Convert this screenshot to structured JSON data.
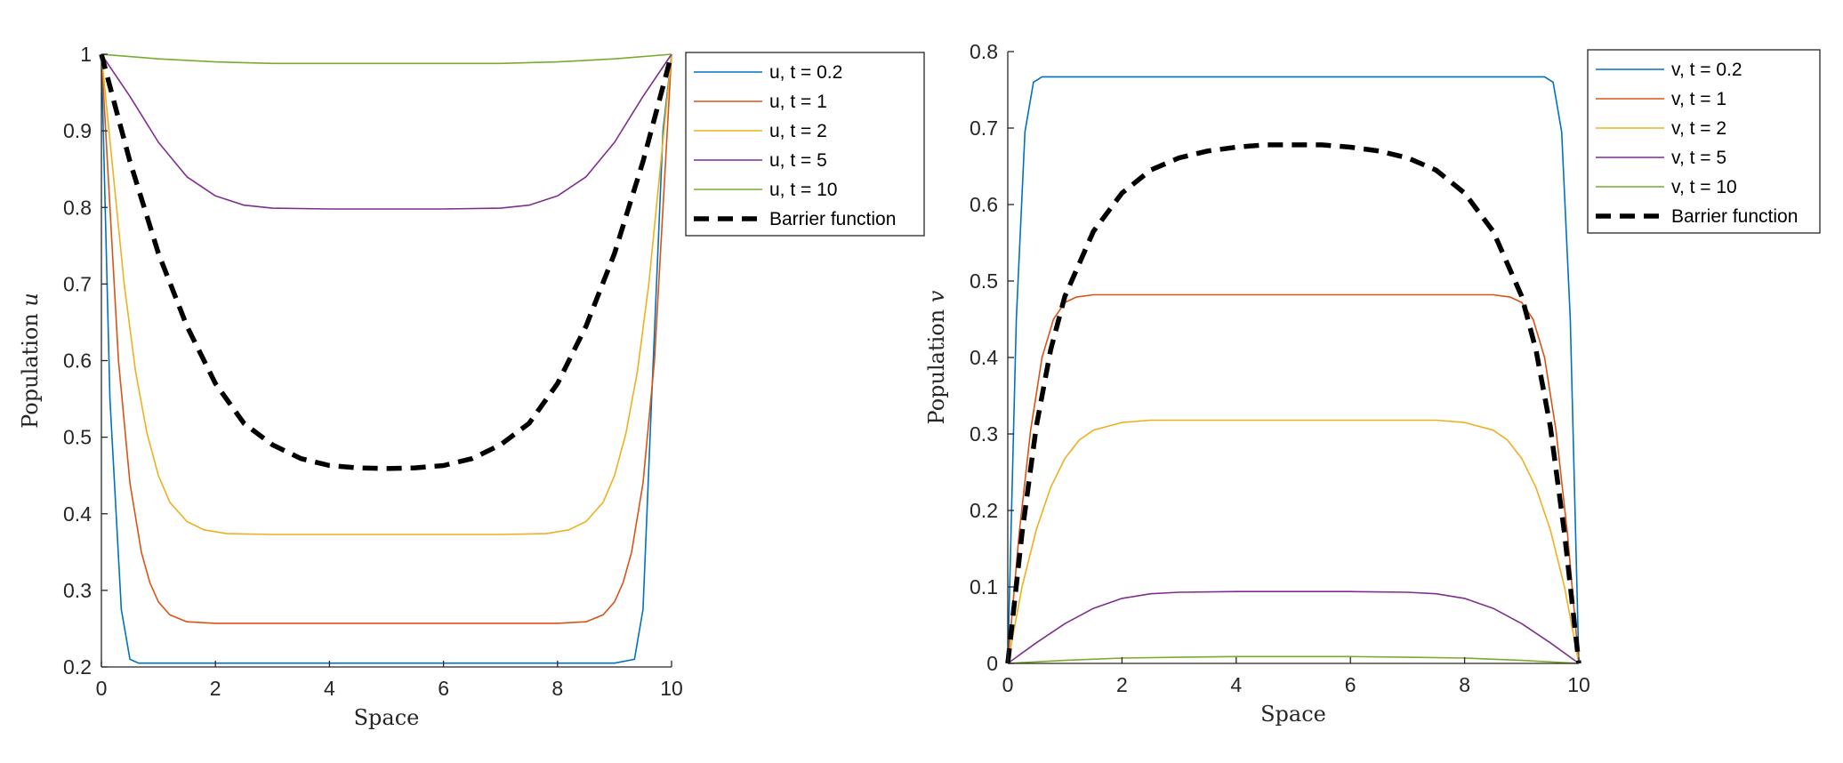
{
  "chart_data": [
    {
      "type": "line",
      "title": "",
      "xlabel": "Space",
      "ylabel": "Population u",
      "ylabel_prefix": "Population ",
      "ylabel_symbol": "u",
      "xlim": [
        0,
        10
      ],
      "ylim": [
        0.2,
        1
      ],
      "xticks": [
        0,
        2,
        4,
        6,
        8,
        10
      ],
      "xtick_labels": [
        "0",
        "2",
        "4",
        "6",
        "8",
        "10"
      ],
      "yticks": [
        0.2,
        0.3,
        0.4,
        0.5,
        0.6,
        0.7,
        0.8,
        0.9,
        1
      ],
      "ytick_labels": [
        "0.2",
        "0.3",
        "0.4",
        "0.5",
        "0.6",
        "0.7",
        "0.8",
        "0.9",
        "1"
      ],
      "grid": false,
      "legend_position": "outside-top-right",
      "series": [
        {
          "name": "u, t = 0.2",
          "color": "#0072BD",
          "style": "solid",
          "x": [
            0,
            0.15,
            0.35,
            0.5,
            0.65,
            1,
            2,
            4,
            6,
            8,
            9,
            9.35,
            9.5,
            9.65,
            9.85,
            10
          ],
          "y": [
            1,
            0.55,
            0.275,
            0.21,
            0.205,
            0.205,
            0.205,
            0.205,
            0.205,
            0.205,
            0.205,
            0.21,
            0.275,
            0.55,
            0.9,
            1
          ]
        },
        {
          "name": "u, t = 1",
          "color": "#D95319",
          "style": "solid",
          "x": [
            0,
            0.15,
            0.3,
            0.5,
            0.7,
            0.85,
            1,
            1.2,
            1.5,
            2,
            4,
            6,
            8,
            8.5,
            8.8,
            9,
            9.15,
            9.3,
            9.5,
            9.7,
            9.85,
            10
          ],
          "y": [
            1,
            0.8,
            0.6,
            0.44,
            0.35,
            0.31,
            0.285,
            0.268,
            0.259,
            0.257,
            0.257,
            0.257,
            0.257,
            0.259,
            0.268,
            0.285,
            0.31,
            0.35,
            0.44,
            0.6,
            0.8,
            1
          ]
        },
        {
          "name": "u, t = 2",
          "color": "#EDB120",
          "style": "solid",
          "x": [
            0,
            0.2,
            0.4,
            0.6,
            0.8,
            1,
            1.2,
            1.5,
            1.8,
            2.2,
            3,
            5,
            7,
            7.8,
            8.2,
            8.5,
            8.8,
            9,
            9.2,
            9.4,
            9.6,
            9.8,
            10
          ],
          "y": [
            1,
            0.85,
            0.7,
            0.585,
            0.505,
            0.45,
            0.415,
            0.39,
            0.379,
            0.374,
            0.373,
            0.373,
            0.373,
            0.374,
            0.379,
            0.39,
            0.415,
            0.45,
            0.505,
            0.585,
            0.7,
            0.85,
            1
          ]
        },
        {
          "name": "u, t = 5",
          "color": "#7E2F8E",
          "style": "solid",
          "x": [
            0,
            0.5,
            1,
            1.5,
            2,
            2.5,
            3,
            4,
            5,
            6,
            7,
            7.5,
            8,
            8.5,
            9,
            9.5,
            10
          ],
          "y": [
            1,
            0.945,
            0.885,
            0.84,
            0.815,
            0.803,
            0.799,
            0.798,
            0.798,
            0.798,
            0.799,
            0.803,
            0.815,
            0.84,
            0.885,
            0.945,
            1
          ]
        },
        {
          "name": "u, t = 10",
          "color": "#77AC30",
          "style": "solid",
          "x": [
            0,
            1,
            2,
            3,
            4,
            5,
            6,
            7,
            8,
            9,
            10
          ],
          "y": [
            1,
            0.994,
            0.99,
            0.988,
            0.988,
            0.988,
            0.988,
            0.988,
            0.99,
            0.994,
            1
          ]
        },
        {
          "name": "Barrier function",
          "color": "#000000",
          "style": "dashed",
          "x": [
            0,
            0.25,
            0.5,
            0.75,
            1,
            1.5,
            2,
            2.5,
            3,
            3.5,
            4,
            4.5,
            5,
            5.5,
            6,
            6.5,
            7,
            7.5,
            8,
            8.5,
            9,
            9.25,
            9.5,
            9.75,
            10
          ],
          "y": [
            1,
            0.93,
            0.86,
            0.8,
            0.74,
            0.645,
            0.57,
            0.518,
            0.49,
            0.472,
            0.463,
            0.46,
            0.459,
            0.46,
            0.463,
            0.472,
            0.49,
            0.518,
            0.57,
            0.645,
            0.74,
            0.8,
            0.86,
            0.93,
            1
          ]
        }
      ]
    },
    {
      "type": "line",
      "title": "",
      "xlabel": "Space",
      "ylabel": "Population v",
      "ylabel_prefix": "Population ",
      "ylabel_symbol": "v",
      "xlim": [
        0,
        10
      ],
      "ylim": [
        0,
        0.8
      ],
      "xticks": [
        0,
        2,
        4,
        6,
        8,
        10
      ],
      "xtick_labels": [
        "0",
        "2",
        "4",
        "6",
        "8",
        "10"
      ],
      "yticks": [
        0,
        0.1,
        0.2,
        0.3,
        0.4,
        0.5,
        0.6,
        0.7,
        0.8
      ],
      "ytick_labels": [
        "0",
        "0.1",
        "0.2",
        "0.3",
        "0.4",
        "0.5",
        "0.6",
        "0.7",
        "0.8"
      ],
      "grid": false,
      "legend_position": "outside-top-right",
      "series": [
        {
          "name": "v, t = 0.2",
          "color": "#0072BD",
          "style": "solid",
          "x": [
            0,
            0.15,
            0.3,
            0.45,
            0.6,
            1,
            2,
            4,
            6,
            8,
            9,
            9.4,
            9.55,
            9.7,
            9.85,
            10
          ],
          "y": [
            0,
            0.45,
            0.695,
            0.76,
            0.767,
            0.767,
            0.767,
            0.767,
            0.767,
            0.767,
            0.767,
            0.767,
            0.76,
            0.695,
            0.45,
            0
          ]
        },
        {
          "name": "v, t = 1",
          "color": "#D95319",
          "style": "solid",
          "x": [
            0,
            0.2,
            0.4,
            0.6,
            0.8,
            1,
            1.2,
            1.5,
            2,
            4,
            6,
            8,
            8.5,
            8.8,
            9,
            9.2,
            9.4,
            9.6,
            9.8,
            10
          ],
          "y": [
            0,
            0.17,
            0.305,
            0.4,
            0.45,
            0.472,
            0.479,
            0.482,
            0.482,
            0.482,
            0.482,
            0.482,
            0.482,
            0.479,
            0.472,
            0.45,
            0.4,
            0.305,
            0.17,
            0
          ]
        },
        {
          "name": "v, t = 2",
          "color": "#EDB120",
          "style": "solid",
          "x": [
            0,
            0.25,
            0.5,
            0.75,
            1,
            1.25,
            1.5,
            2,
            2.5,
            3,
            5,
            7,
            7.5,
            8,
            8.5,
            8.75,
            9,
            9.25,
            9.5,
            9.75,
            10
          ],
          "y": [
            0,
            0.1,
            0.175,
            0.23,
            0.268,
            0.292,
            0.305,
            0.315,
            0.318,
            0.318,
            0.318,
            0.318,
            0.318,
            0.315,
            0.305,
            0.292,
            0.268,
            0.23,
            0.175,
            0.1,
            0
          ]
        },
        {
          "name": "v, t = 5",
          "color": "#7E2F8E",
          "style": "solid",
          "x": [
            0,
            0.5,
            1,
            1.5,
            2,
            2.5,
            3,
            4,
            5,
            6,
            7,
            7.5,
            8,
            8.5,
            9,
            9.5,
            10
          ],
          "y": [
            0,
            0.027,
            0.052,
            0.072,
            0.085,
            0.091,
            0.093,
            0.094,
            0.094,
            0.094,
            0.093,
            0.091,
            0.085,
            0.072,
            0.052,
            0.027,
            0
          ]
        },
        {
          "name": "v, t = 10",
          "color": "#77AC30",
          "style": "solid",
          "x": [
            0,
            1,
            2,
            3,
            4,
            5,
            6,
            7,
            8,
            9,
            10
          ],
          "y": [
            0,
            0.004,
            0.007,
            0.008,
            0.009,
            0.009,
            0.009,
            0.008,
            0.007,
            0.004,
            0
          ]
        },
        {
          "name": "Barrier function",
          "color": "#000000",
          "style": "dashed",
          "x": [
            0,
            0.25,
            0.5,
            0.75,
            1,
            1.5,
            2,
            2.5,
            3,
            3.5,
            4,
            4.5,
            5,
            5.5,
            6,
            6.5,
            7,
            7.5,
            8,
            8.5,
            9,
            9.25,
            9.5,
            9.75,
            10
          ],
          "y": [
            0,
            0.17,
            0.31,
            0.41,
            0.48,
            0.565,
            0.615,
            0.645,
            0.661,
            0.67,
            0.675,
            0.678,
            0.678,
            0.678,
            0.675,
            0.67,
            0.661,
            0.645,
            0.615,
            0.565,
            0.48,
            0.41,
            0.31,
            0.17,
            0
          ]
        }
      ]
    }
  ]
}
